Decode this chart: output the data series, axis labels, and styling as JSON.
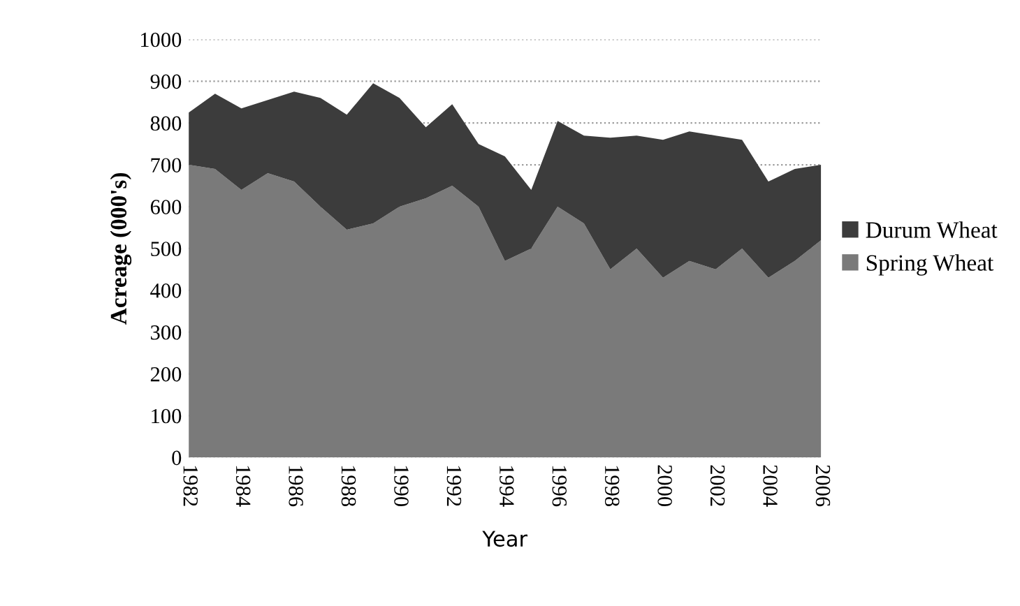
{
  "chart_data": {
    "type": "area",
    "stacked": true,
    "xlabel": "Year",
    "ylabel": "Acreage (000's)",
    "x": [
      1982,
      1983,
      1984,
      1985,
      1986,
      1987,
      1988,
      1989,
      1990,
      1991,
      1992,
      1993,
      1994,
      1995,
      1996,
      1997,
      1998,
      1999,
      2000,
      2001,
      2002,
      2003,
      2004,
      2005,
      2006
    ],
    "series": [
      {
        "name": "Spring Wheat",
        "color": "#7a7a7a",
        "values": [
          700,
          690,
          640,
          680,
          660,
          600,
          545,
          560,
          600,
          620,
          650,
          600,
          470,
          500,
          600,
          560,
          450,
          500,
          430,
          470,
          450,
          500,
          430,
          470,
          520
        ]
      },
      {
        "name": "Durum Wheat",
        "color": "#3c3c3c",
        "values": [
          125,
          180,
          195,
          175,
          215,
          260,
          275,
          335,
          260,
          170,
          195,
          150,
          250,
          140,
          205,
          210,
          315,
          270,
          330,
          310,
          320,
          260,
          230,
          220,
          180
        ]
      }
    ],
    "xlim": [
      1982,
      2006
    ],
    "xticks": [
      1982,
      1984,
      1986,
      1988,
      1990,
      1992,
      1994,
      1996,
      1998,
      2000,
      2002,
      2004,
      2006
    ],
    "ylim": [
      0,
      1000
    ],
    "yticks": [
      0,
      100,
      200,
      300,
      400,
      500,
      600,
      700,
      800,
      900,
      1000
    ],
    "grid": "y",
    "legend": "right"
  }
}
